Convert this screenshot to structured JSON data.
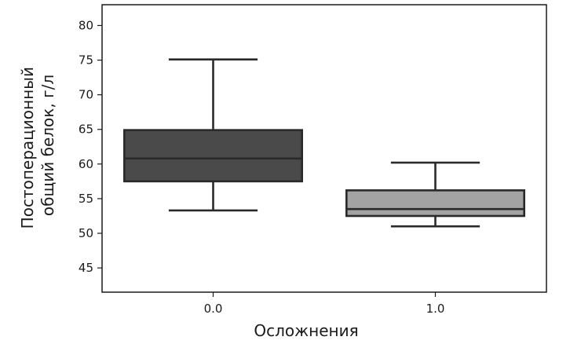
{
  "chart_data": {
    "type": "box",
    "xlabel": "Осложнения",
    "ylabel": [
      "Постоперационный",
      "общий белок, г/л"
    ],
    "categories": [
      "0.0",
      "1.0"
    ],
    "ylim": [
      41.5,
      83
    ],
    "yticks": [
      45,
      50,
      55,
      60,
      65,
      70,
      75,
      80
    ],
    "grid": false,
    "boxes": [
      {
        "category": "0.0",
        "whisker_low": 53.3,
        "q1": 57.5,
        "median": 60.8,
        "q3": 64.9,
        "whisker_high": 75.1,
        "color": "#4a4a4a"
      },
      {
        "category": "1.0",
        "whisker_low": 51.0,
        "q1": 52.5,
        "median": 53.5,
        "q3": 56.2,
        "whisker_high": 60.2,
        "color": "#a3a3a3"
      }
    ]
  }
}
